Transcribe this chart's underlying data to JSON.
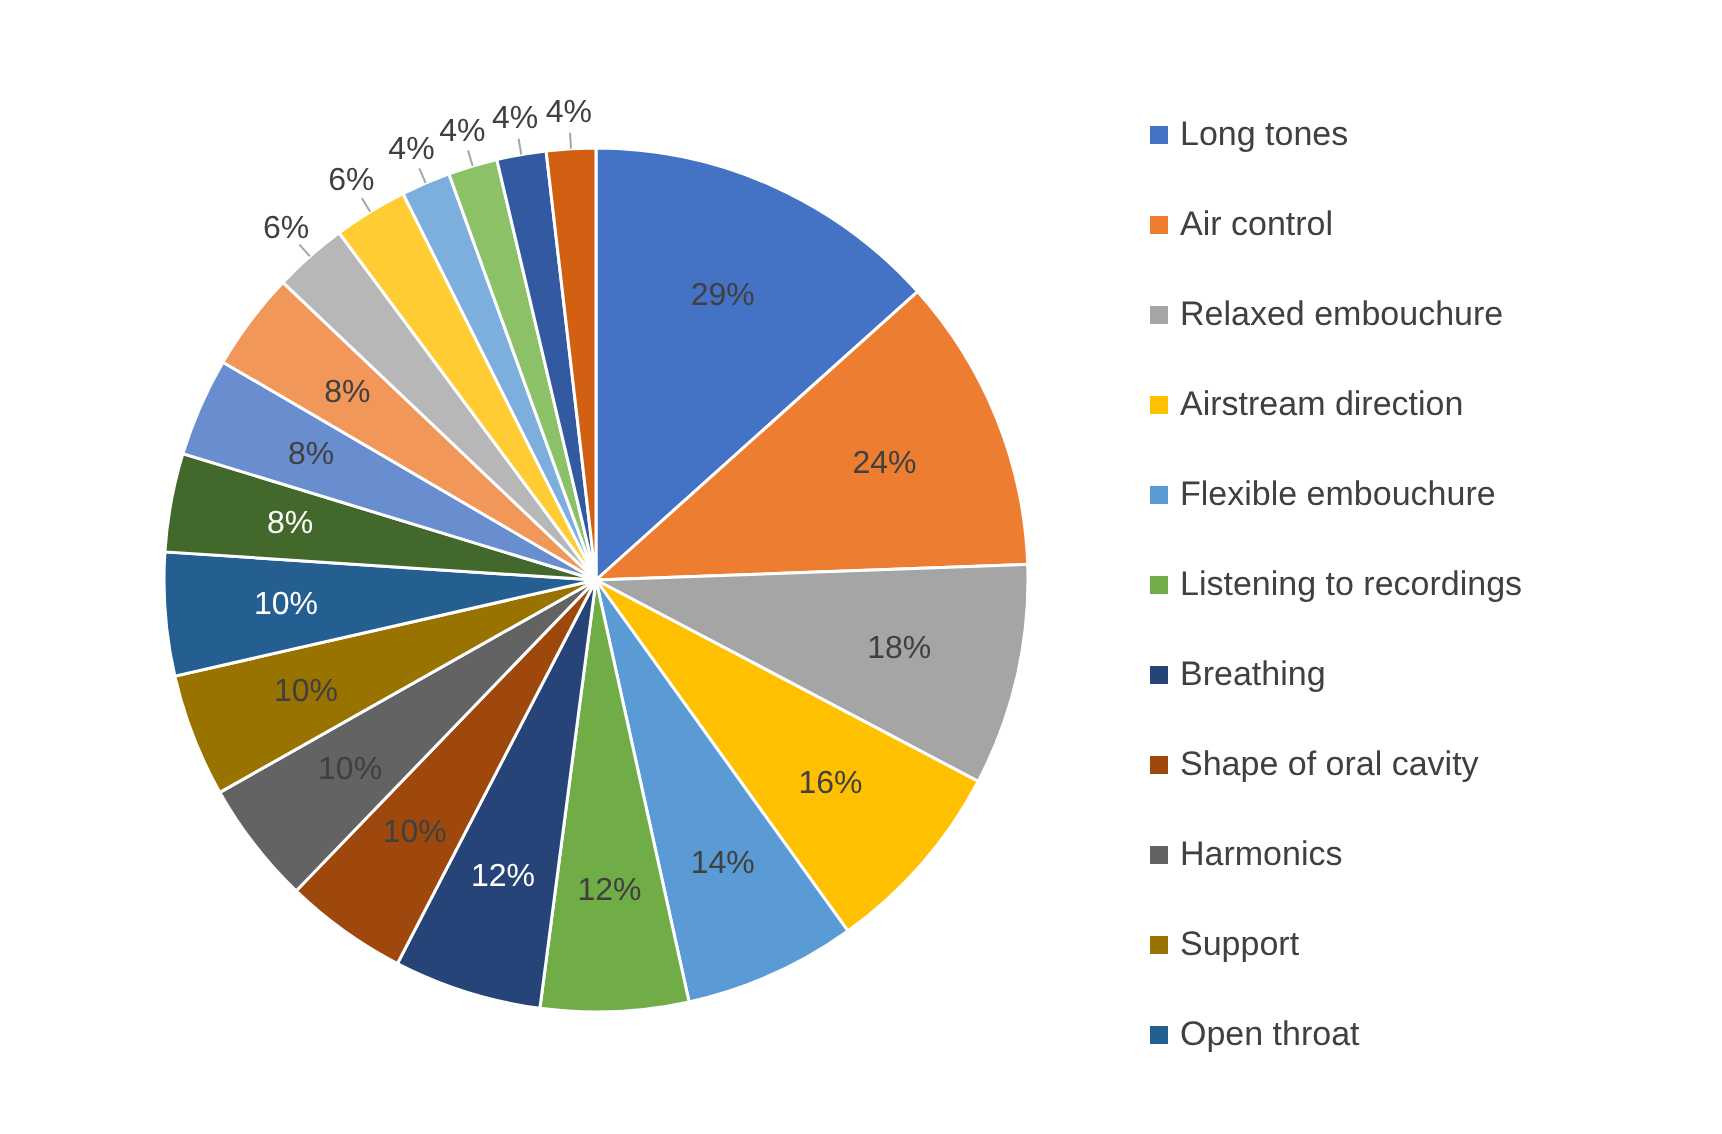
{
  "chart_data": {
    "type": "pie",
    "legend": "right",
    "data_labels": true,
    "categories": [
      "Long tones",
      "Air control",
      "Relaxed embouchure",
      "Airstream direction",
      "Flexible embouchure",
      "Listening to recordings",
      "Breathing",
      "Shape of oral cavity",
      "Harmonics",
      "Support",
      "Open throat",
      null,
      null,
      null,
      null,
      null,
      null,
      null,
      null,
      null
    ],
    "values": [
      29,
      24,
      18,
      16,
      14,
      12,
      12,
      10,
      10,
      10,
      10,
      8,
      8,
      8,
      6,
      6,
      4,
      4,
      4,
      4
    ],
    "value_labels": [
      "29%",
      "24%",
      "18%",
      "16%",
      "14%",
      "12%",
      "12%",
      "10%",
      "10%",
      "10%",
      "10%",
      "8%",
      "8%",
      "8%",
      "6%",
      "6%",
      "4%",
      "4%",
      "4%",
      "4%"
    ],
    "colors": [
      "#4472c4",
      "#ed7d31",
      "#a5a5a5",
      "#ffc000",
      "#5b9bd5",
      "#70ad47",
      "#264478",
      "#9e480e",
      "#636363",
      "#997300",
      "#255e91",
      "#43682b",
      "#698ed0",
      "#f1975a",
      "#b7b7b7",
      "#ffcd33",
      "#7cafdd",
      "#8cc168",
      "#335aa1",
      "#d26012"
    ]
  }
}
